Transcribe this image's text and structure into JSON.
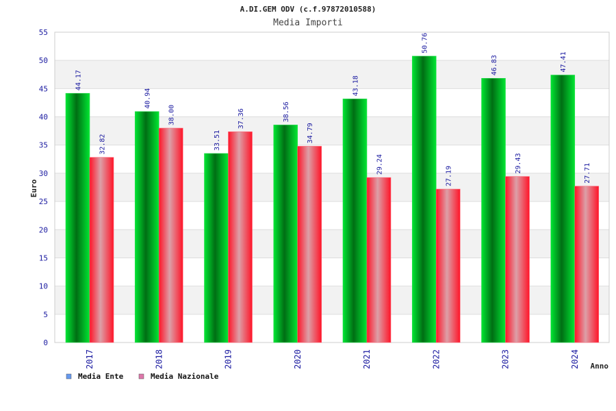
{
  "chart_data": {
    "type": "bar",
    "title": "A.DI.GEM ODV (c.f.97872010588)",
    "subtitle": "Media Importi",
    "xlabel": "Anno",
    "ylabel": "Euro",
    "ylim": [
      0,
      55
    ],
    "yticks": [
      0,
      5,
      10,
      15,
      20,
      25,
      30,
      35,
      40,
      45,
      50,
      55
    ],
    "grid": true,
    "legend_position": "bottom-left",
    "categories": [
      "2017",
      "2018",
      "2019",
      "2020",
      "2021",
      "2022",
      "2023",
      "2024"
    ],
    "series": [
      {
        "name": "Media Ente",
        "color": "#00cc22",
        "legend_color": "#6699ee",
        "values": [
          44.17,
          40.94,
          33.51,
          38.56,
          43.18,
          50.76,
          46.83,
          47.41
        ],
        "labels": [
          "44.17",
          "40.94",
          "33.51",
          "38.56",
          "43.18",
          "50.76",
          "46.83",
          "47.41"
        ]
      },
      {
        "name": "Media Nazionale",
        "color": "#ee1122",
        "legend_color": "#dd77aa",
        "values": [
          32.82,
          38.0,
          37.36,
          34.79,
          29.24,
          27.19,
          29.43,
          27.71
        ],
        "labels": [
          "32.82",
          "38.00",
          "37.36",
          "34.79",
          "29.24",
          "27.19",
          "29.43",
          "27.71"
        ]
      }
    ]
  }
}
